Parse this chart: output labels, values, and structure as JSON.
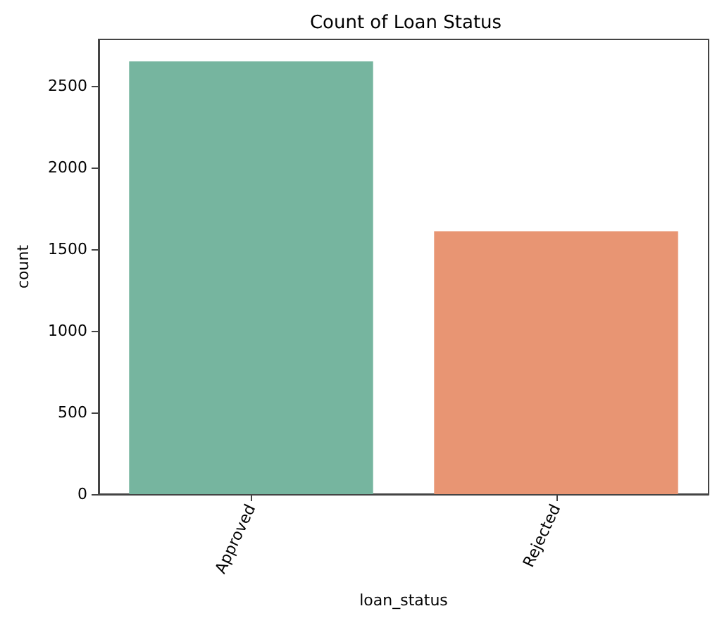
{
  "chart_data": {
    "type": "bar",
    "title": "Count of Loan Status",
    "xlabel": "loan_status",
    "ylabel": "count",
    "categories": [
      "Approved",
      "Rejected"
    ],
    "values": [
      2650,
      1610
    ],
    "colors": [
      "#76b59f",
      "#e89573"
    ],
    "ylim": [
      0,
      2785
    ],
    "yticks": [
      0,
      500,
      1000,
      1500,
      2000,
      2500
    ],
    "grid": false
  }
}
